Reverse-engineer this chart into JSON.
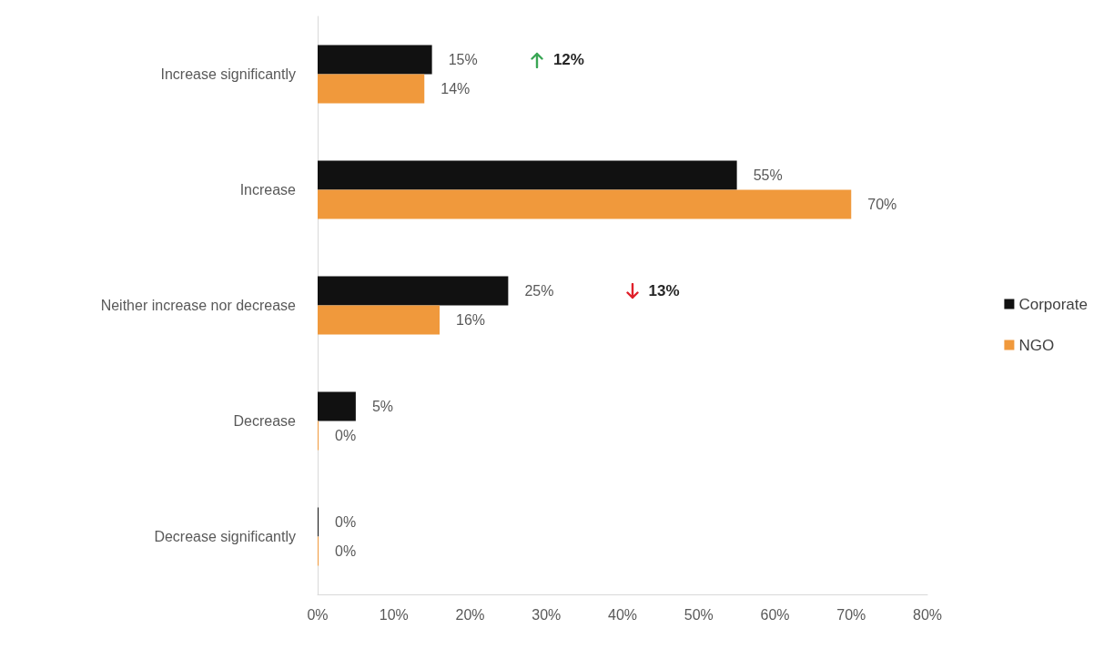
{
  "chart_data": {
    "type": "bar",
    "orientation": "horizontal",
    "categories": [
      "Increase significantly",
      "Increase",
      "Neither increase nor decrease",
      "Decrease",
      "Decrease significantly"
    ],
    "series": [
      {
        "name": "Corporate",
        "color": "#111111",
        "values": [
          15,
          55,
          25,
          5,
          0
        ],
        "value_labels": [
          "15%",
          "55%",
          "25%",
          "5%",
          "0%"
        ]
      },
      {
        "name": "NGO",
        "color": "#f0993c",
        "values": [
          14,
          70,
          16,
          0,
          0
        ],
        "value_labels": [
          "14%",
          "70%",
          "16%",
          "0%",
          "0%"
        ]
      }
    ],
    "xlim": [
      0,
      80
    ],
    "xticks": [
      {
        "value": 0,
        "label": "0%"
      },
      {
        "value": 10,
        "label": "10%"
      },
      {
        "value": 20,
        "label": "20%"
      },
      {
        "value": 30,
        "label": "30%"
      },
      {
        "value": 40,
        "label": "40%"
      },
      {
        "value": 50,
        "label": "50%"
      },
      {
        "value": 60,
        "label": "60%"
      },
      {
        "value": 70,
        "label": "70%"
      },
      {
        "value": 80,
        "label": "80%"
      }
    ],
    "annotations": [
      "12%",
      "13%"
    ],
    "grid": false,
    "legend": "right"
  }
}
